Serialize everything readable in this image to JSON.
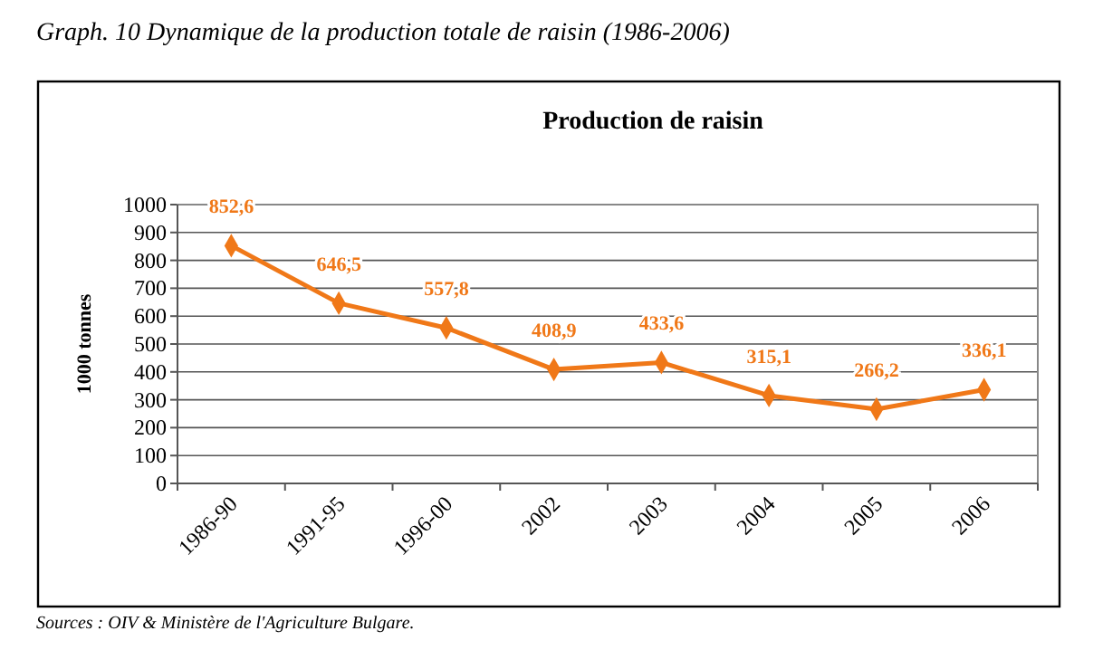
{
  "chart_data": {
    "type": "line",
    "title": "Production de raisin",
    "subtitle": "Graph. 10 Dynamique de la production totale de raisin (1986-2006)",
    "ylabel": "1000 tonnes",
    "categories": [
      "1986-90",
      "1991-95",
      "1996-00",
      "2002",
      "2003",
      "2004",
      "2005",
      "2006"
    ],
    "series": [
      {
        "color": "#f07818",
        "values": [
          852.6,
          646.5,
          557.8,
          408.9,
          433.6,
          315.1,
          266.2,
          336.1
        ],
        "value_labels": [
          "852,6",
          "646,5",
          "557,8",
          "408,9",
          "433,6",
          "315,1",
          "266,2",
          "336,1"
        ]
      }
    ],
    "ylim": [
      0,
      1000
    ],
    "yticks": [
      0,
      100,
      200,
      300,
      400,
      500,
      600,
      700,
      800,
      900,
      1000
    ],
    "grid": "y",
    "marker": "diamond",
    "line_style": "solid",
    "annotations": [
      "Sources : OIV & Ministère de l'Agriculture Bulgare."
    ]
  }
}
